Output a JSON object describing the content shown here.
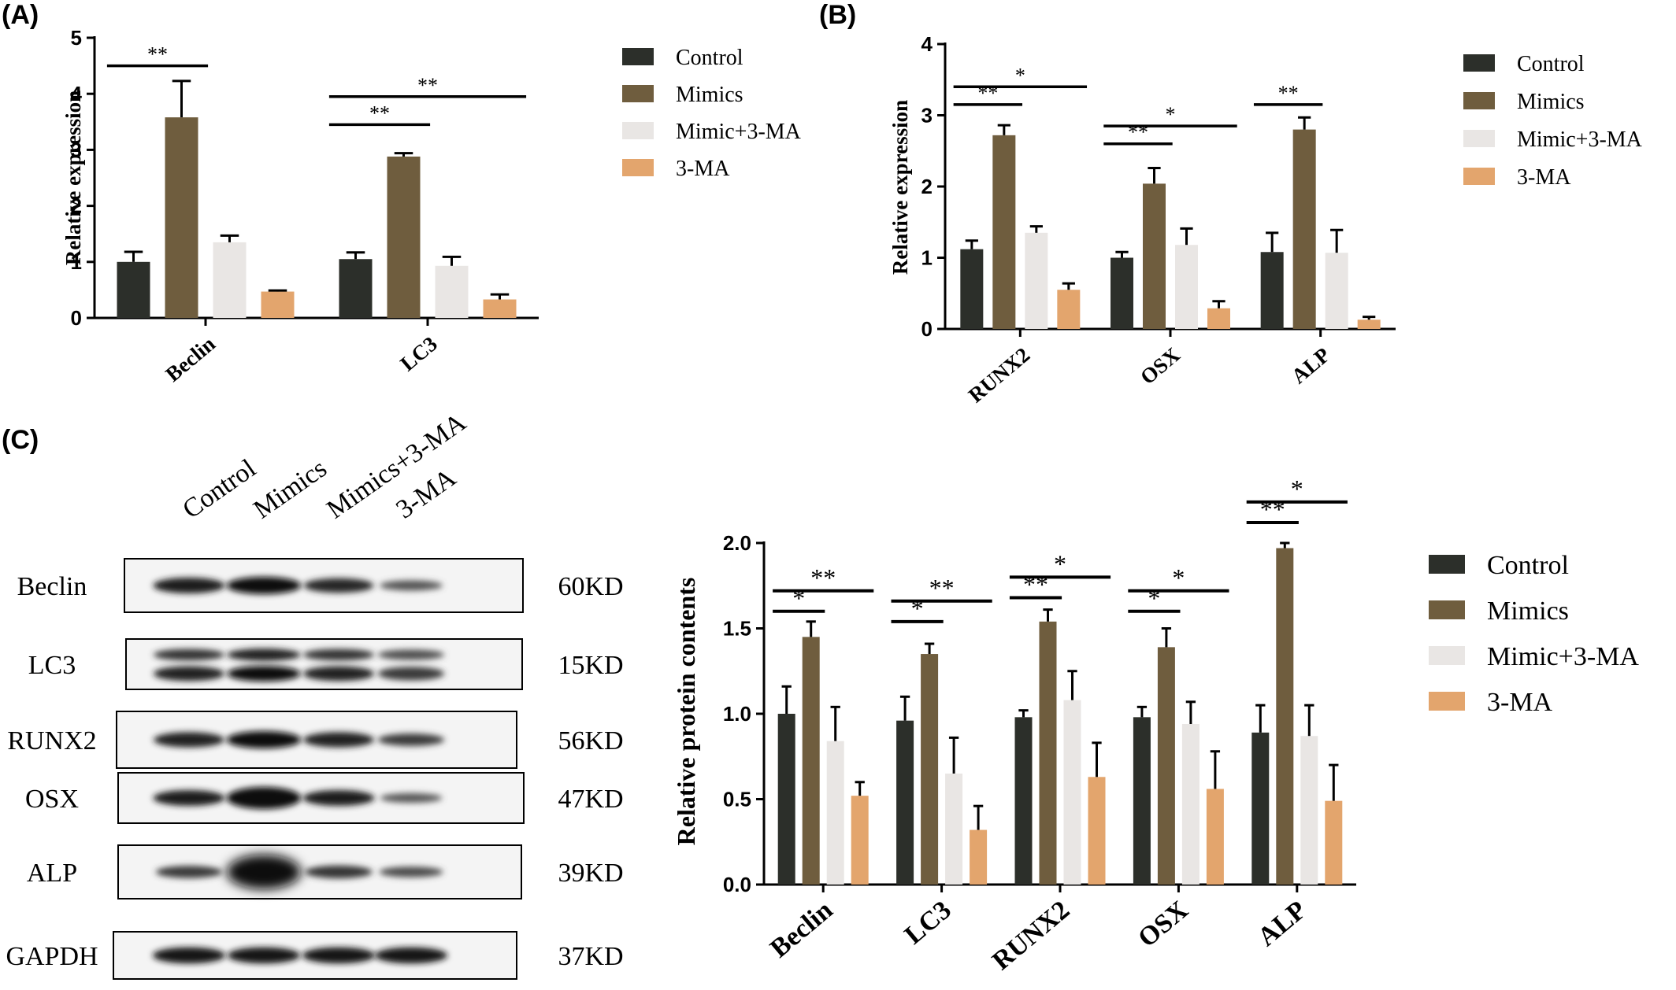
{
  "panels": {
    "a": "(A)",
    "b": "(B)",
    "c": "(C)"
  },
  "colors": {
    "Control": "#2c2f2a",
    "Mimics": "#6f5d3e",
    "Mimic+3-MA": "#e9e6e4",
    "3-MA": "#e3a56d"
  },
  "chart_data": [
    {
      "panel": "(A)",
      "type": "bar",
      "xlabel": "",
      "ylabel": "Relative expression",
      "ylim": [
        0,
        5
      ],
      "yticks": [
        "0",
        "1",
        "2",
        "3",
        "4",
        "5"
      ],
      "categories": [
        "Beclin",
        "LC3"
      ],
      "series": [
        {
          "name": "Control",
          "values": [
            1.0,
            1.05
          ],
          "errors": [
            0.18,
            0.12
          ]
        },
        {
          "name": "Mimics",
          "values": [
            3.58,
            2.88
          ],
          "errors": [
            0.65,
            0.06
          ]
        },
        {
          "name": "Mimic+3-MA",
          "values": [
            1.35,
            0.93
          ],
          "errors": [
            0.12,
            0.16
          ]
        },
        {
          "name": "3-MA",
          "values": [
            0.47,
            0.33
          ],
          "errors": [
            0.02,
            0.09
          ]
        }
      ],
      "significance": [
        {
          "category": "Beclin",
          "from": "Control",
          "to": "Mimics",
          "label": "**",
          "y": 4.5
        },
        {
          "category": "LC3",
          "from": "Control",
          "to": "Mimics",
          "label": "**",
          "y": 3.45
        },
        {
          "category": "LC3",
          "from": "Control",
          "to": "3-MA",
          "label": "**",
          "y": 3.95
        }
      ],
      "legend": [
        "Control",
        "Mimics",
        "Mimic+3-MA",
        "3-MA"
      ],
      "legend_position": "right"
    },
    {
      "panel": "(B)",
      "type": "bar",
      "xlabel": "",
      "ylabel": "Relative expression",
      "ylim": [
        0,
        4
      ],
      "yticks": [
        "0",
        "1",
        "2",
        "3",
        "4"
      ],
      "categories": [
        "RUNX2",
        "OSX",
        "ALP"
      ],
      "series": [
        {
          "name": "Control",
          "values": [
            1.12,
            1.0,
            1.08
          ],
          "errors": [
            0.12,
            0.08,
            0.27
          ]
        },
        {
          "name": "Mimics",
          "values": [
            2.72,
            2.04,
            2.8
          ],
          "errors": [
            0.14,
            0.22,
            0.17
          ]
        },
        {
          "name": "Mimic+3-MA",
          "values": [
            1.35,
            1.18,
            1.07
          ],
          "errors": [
            0.09,
            0.23,
            0.32
          ]
        },
        {
          "name": "3-MA",
          "values": [
            0.55,
            0.29,
            0.13
          ],
          "errors": [
            0.09,
            0.1,
            0.04
          ]
        }
      ],
      "significance": [
        {
          "category": "RUNX2",
          "from": "Control",
          "to": "Mimics",
          "label": "**",
          "y": 3.15
        },
        {
          "category": "RUNX2",
          "from": "Control",
          "to": "3-MA",
          "label": "*",
          "y": 3.4
        },
        {
          "category": "OSX",
          "from": "Control",
          "to": "Mimics",
          "label": "**",
          "y": 2.6
        },
        {
          "category": "OSX",
          "from": "Control",
          "to": "3-MA",
          "label": "*",
          "y": 2.85
        },
        {
          "category": "ALP",
          "from": "Control",
          "to": "Mimics",
          "label": "**",
          "y": 3.15
        }
      ],
      "legend": [
        "Control",
        "Mimics",
        "Mimic+3-MA",
        "3-MA"
      ],
      "legend_position": "right"
    },
    {
      "panel": "(C)",
      "type": "bar",
      "xlabel": "",
      "ylabel": "Relative protein contents",
      "ylim": [
        0,
        2.0
      ],
      "yticks": [
        "0.0",
        "0.5",
        "1.0",
        "1.5",
        "2.0"
      ],
      "categories": [
        "Beclin",
        "LC3",
        "RUNX2",
        "OSX",
        "ALP"
      ],
      "series": [
        {
          "name": "Control",
          "values": [
            1.0,
            0.96,
            0.98,
            0.98,
            0.89
          ],
          "errors": [
            0.16,
            0.14,
            0.04,
            0.06,
            0.16
          ]
        },
        {
          "name": "Mimics",
          "values": [
            1.45,
            1.35,
            1.54,
            1.39,
            1.97
          ],
          "errors": [
            0.09,
            0.06,
            0.07,
            0.11,
            0.03
          ]
        },
        {
          "name": "Mimic+3-MA",
          "values": [
            0.84,
            0.65,
            1.08,
            0.94,
            0.87
          ],
          "errors": [
            0.2,
            0.21,
            0.17,
            0.13,
            0.18
          ]
        },
        {
          "name": "3-MA",
          "values": [
            0.52,
            0.32,
            0.63,
            0.56,
            0.49
          ],
          "errors": [
            0.08,
            0.14,
            0.2,
            0.22,
            0.21
          ]
        }
      ],
      "significance": [
        {
          "category": "Beclin",
          "from": "Control",
          "to": "Mimics",
          "label": "*",
          "y": 1.6
        },
        {
          "category": "Beclin",
          "from": "Control",
          "to": "3-MA",
          "label": "**",
          "y": 1.72
        },
        {
          "category": "LC3",
          "from": "Control",
          "to": "Mimics",
          "label": "*",
          "y": 1.54
        },
        {
          "category": "LC3",
          "from": "Control",
          "to": "3-MA",
          "label": "**",
          "y": 1.66
        },
        {
          "category": "RUNX2",
          "from": "Control",
          "to": "Mimics",
          "label": "**",
          "y": 1.68
        },
        {
          "category": "RUNX2",
          "from": "Control",
          "to": "3-MA",
          "label": "*",
          "y": 1.8
        },
        {
          "category": "OSX",
          "from": "Control",
          "to": "Mimics",
          "label": "*",
          "y": 1.6
        },
        {
          "category": "OSX",
          "from": "Control",
          "to": "3-MA",
          "label": "*",
          "y": 1.72
        },
        {
          "category": "ALP",
          "from": "Control",
          "to": "Mimics",
          "label": "**",
          "y": 2.12
        },
        {
          "category": "ALP",
          "from": "Control",
          "to": "3-MA",
          "label": "*",
          "y": 2.24
        }
      ],
      "legend": [
        "Control",
        "Mimics",
        "Mimic+3-MA",
        "3-MA"
      ],
      "legend_position": "right"
    }
  ],
  "western_blot": {
    "lanes": [
      "Control",
      "Mimics",
      "Mimics+3-MA",
      "3-MA"
    ],
    "rows": [
      {
        "protein": "Beclin",
        "size": "60KD",
        "intensities": [
          0.85,
          1.0,
          0.75,
          0.35
        ]
      },
      {
        "protein": "LC3",
        "size": "15KD",
        "intensities": [
          0.8,
          0.95,
          0.8,
          0.55
        ]
      },
      {
        "protein": "RUNX2",
        "size": "56KD",
        "intensities": [
          0.8,
          1.0,
          0.8,
          0.55
        ]
      },
      {
        "protein": "OSX",
        "size": "47KD",
        "intensities": [
          0.85,
          1.0,
          0.85,
          0.3
        ]
      },
      {
        "protein": "ALP",
        "size": "39KD",
        "intensities": [
          0.55,
          1.0,
          0.6,
          0.4
        ]
      },
      {
        "protein": "GAPDH",
        "size": "37KD",
        "intensities": [
          0.9,
          0.9,
          0.9,
          0.9
        ]
      }
    ]
  }
}
